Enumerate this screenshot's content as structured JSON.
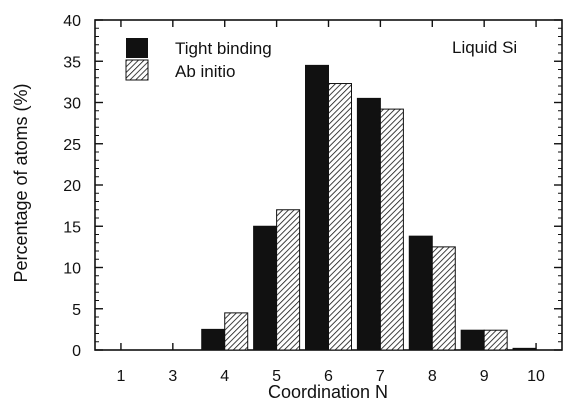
{
  "chart_data": {
    "type": "bar",
    "annotation": "Liquid Si",
    "xlabel": "Coordination N",
    "ylabel": "Percentage of atoms (%)",
    "ylim": [
      0,
      40
    ],
    "yticks": [
      0,
      5,
      10,
      15,
      20,
      25,
      30,
      35,
      40
    ],
    "categories": [
      "1",
      "3",
      "4",
      "5",
      "6",
      "7",
      "8",
      "9",
      "10"
    ],
    "series": [
      {
        "name": "Tight binding",
        "fill": "solid",
        "color": "#111111",
        "values": [
          0,
          0,
          2.5,
          15,
          34.5,
          30.5,
          13.8,
          2.4,
          0.2
        ]
      },
      {
        "name": "Ab initio",
        "fill": "hatched",
        "color": "#111111",
        "values": [
          0,
          0,
          4.5,
          17,
          32.3,
          29.2,
          12.5,
          2.4,
          0
        ]
      }
    ],
    "legend_position": "top-left",
    "grid": false
  }
}
